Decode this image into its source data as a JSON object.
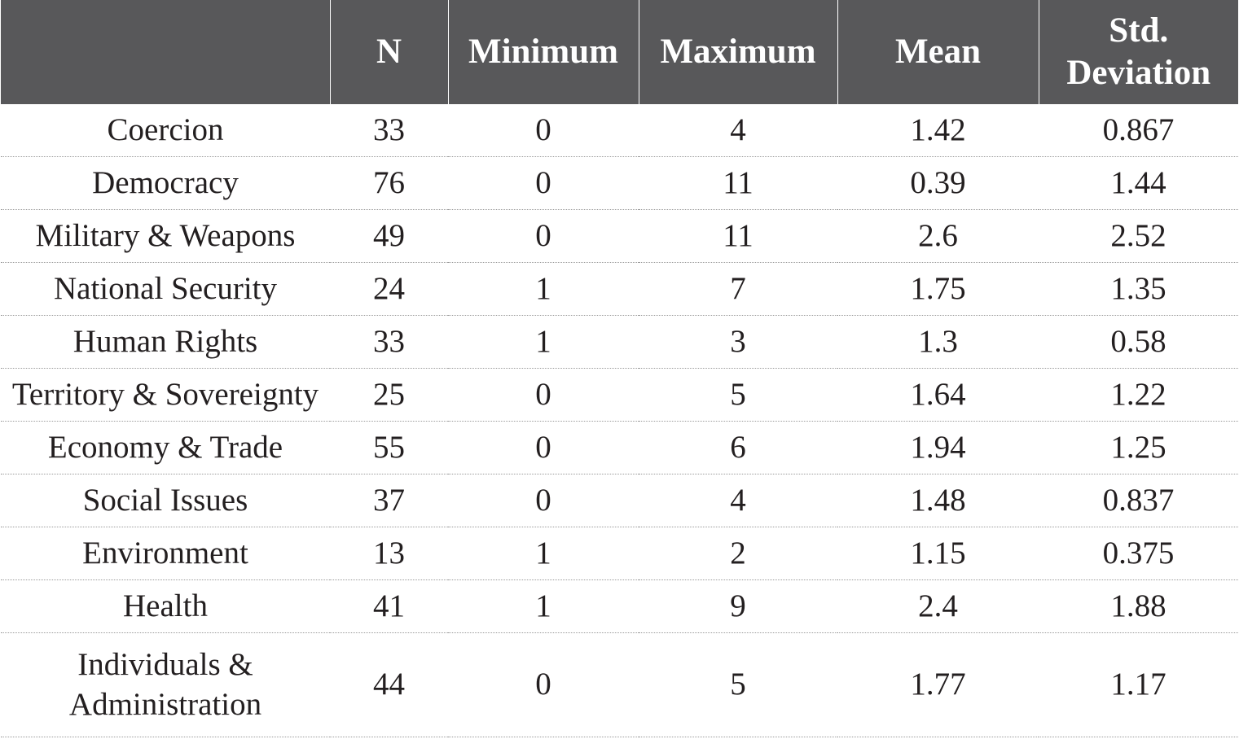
{
  "table": {
    "headers": [
      "",
      "N",
      "Minimum",
      "Maximum",
      "Mean",
      "Std. Deviation"
    ],
    "rows": [
      {
        "label": "Coercion",
        "n": "33",
        "min": "0",
        "max": "4",
        "mean": "1.42",
        "sd": "0.867"
      },
      {
        "label": "Democracy",
        "n": "76",
        "min": "0",
        "max": "11",
        "mean": "0.39",
        "sd": "1.44"
      },
      {
        "label": "Military & Weapons",
        "n": "49",
        "min": "0",
        "max": "11",
        "mean": "2.6",
        "sd": "2.52"
      },
      {
        "label": "National Security",
        "n": "24",
        "min": "1",
        "max": "7",
        "mean": "1.75",
        "sd": "1.35"
      },
      {
        "label": "Human Rights",
        "n": "33",
        "min": "1",
        "max": "3",
        "mean": "1.3",
        "sd": "0.58"
      },
      {
        "label": "Territory & Sovereignty",
        "n": "25",
        "min": "0",
        "max": "5",
        "mean": "1.64",
        "sd": "1.22"
      },
      {
        "label": "Economy & Trade",
        "n": "55",
        "min": "0",
        "max": "6",
        "mean": "1.94",
        "sd": "1.25"
      },
      {
        "label": "Social Issues",
        "n": "37",
        "min": "0",
        "max": "4",
        "mean": "1.48",
        "sd": "0.837"
      },
      {
        "label": "Environment",
        "n": "13",
        "min": "1",
        "max": "2",
        "mean": "1.15",
        "sd": "0.375"
      },
      {
        "label": "Health",
        "n": "41",
        "min": "1",
        "max": "9",
        "mean": "2.4",
        "sd": "1.88"
      },
      {
        "label": "Individuals & Administration",
        "n": "44",
        "min": "0",
        "max": "5",
        "mean": "1.77",
        "sd": "1.17"
      }
    ]
  },
  "colors": {
    "header_bg": "#58585a",
    "header_text": "#ffffff",
    "body_text": "#231f20",
    "row_divider": "#9a9a9a"
  }
}
